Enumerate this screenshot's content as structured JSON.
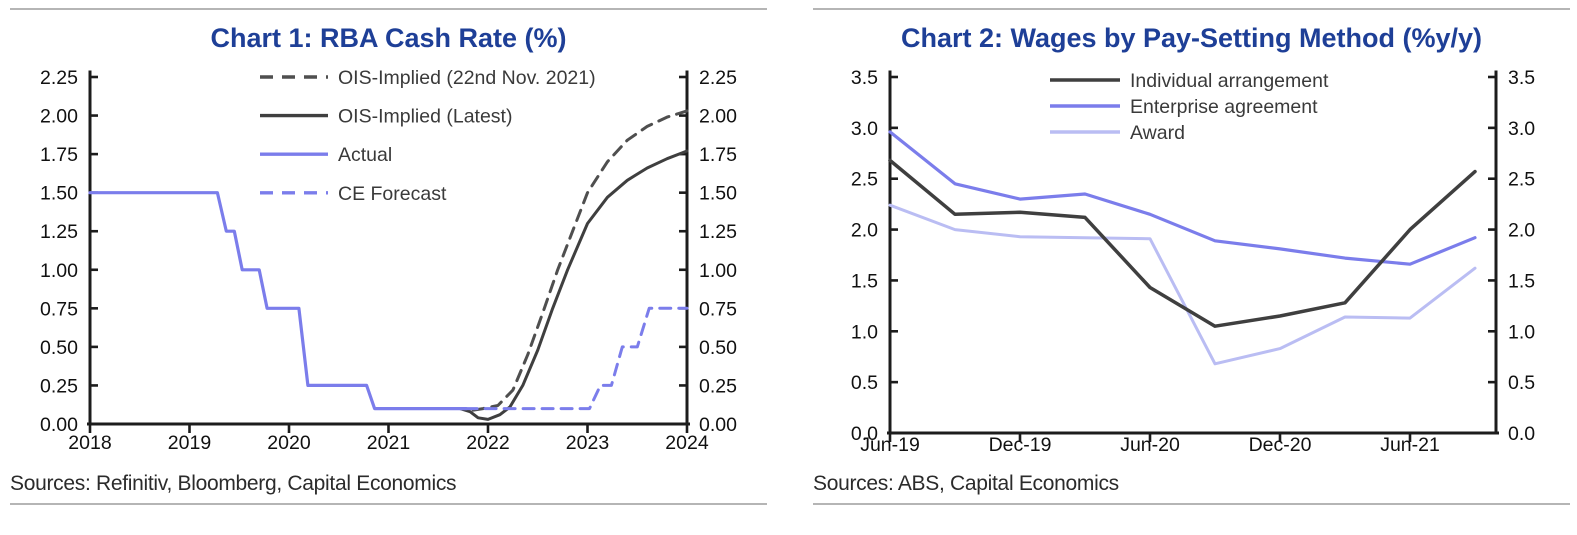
{
  "colors": {
    "title_blue": "#1e3f97",
    "rule_gray": "#b5b5b5",
    "axis_black": "#1c1c1c",
    "tick_label": "#111111",
    "legend_text": "#3a3a3a",
    "dark_line": "#3f3f3f",
    "dark_dashed": "#4f4f4f",
    "periwinkle": "#7b7deb",
    "light_periwinkle": "#babdf3",
    "source_text": "#2b2b2b"
  },
  "panels": [
    {
      "title": "Chart 1: RBA Cash Rate (%)",
      "sources": "Sources: Refinitiv, Bloomberg, Capital Economics"
    },
    {
      "title": "Chart 2: Wages by Pay-Setting Method (%y/y)",
      "sources": "Sources: ABS, Capital Economics"
    }
  ],
  "chart_data": [
    {
      "type": "line",
      "title": "Chart 1: RBA Cash Rate (%)",
      "xlabel": "",
      "ylabel": "",
      "xlim": [
        2018,
        2024
      ],
      "ylim": [
        0,
        2.25
      ],
      "grid": false,
      "dual_y_axis": true,
      "legend_position": "inside-top-center",
      "x_tick_values": [
        2018,
        2019,
        2020,
        2021,
        2022,
        2023,
        2024
      ],
      "x_tick_labels": [
        "2018",
        "2019",
        "2020",
        "2021",
        "2022",
        "2023",
        "2024"
      ],
      "y_tick_values": [
        0,
        0.25,
        0.5,
        0.75,
        1.0,
        1.25,
        1.5,
        1.75,
        2.0,
        2.25
      ],
      "y_tick_labels": [
        "0.00",
        "0.25",
        "0.50",
        "0.75",
        "1.00",
        "1.25",
        "1.50",
        "1.75",
        "2.00",
        "2.25"
      ],
      "series": [
        {
          "name": "OIS-Implied (22nd Nov. 2021)",
          "style": "dashed",
          "color_key": "dark_dashed",
          "points": [
            [
              2021.85,
              0.09
            ],
            [
              2021.95,
              0.1
            ],
            [
              2022.1,
              0.12
            ],
            [
              2022.25,
              0.22
            ],
            [
              2022.4,
              0.45
            ],
            [
              2022.55,
              0.72
            ],
            [
              2022.7,
              1.0
            ],
            [
              2022.85,
              1.25
            ],
            [
              2023.0,
              1.5
            ],
            [
              2023.2,
              1.7
            ],
            [
              2023.4,
              1.84
            ],
            [
              2023.6,
              1.93
            ],
            [
              2023.8,
              1.99
            ],
            [
              2024.0,
              2.03
            ]
          ]
        },
        {
          "name": "OIS-Implied (Latest)",
          "style": "solid",
          "color_key": "dark_line",
          "points": [
            [
              2021.72,
              0.1
            ],
            [
              2021.82,
              0.08
            ],
            [
              2021.9,
              0.04
            ],
            [
              2022.0,
              0.03
            ],
            [
              2022.12,
              0.06
            ],
            [
              2022.22,
              0.11
            ],
            [
              2022.35,
              0.25
            ],
            [
              2022.5,
              0.48
            ],
            [
              2022.65,
              0.75
            ],
            [
              2022.8,
              1.0
            ],
            [
              2023.0,
              1.3
            ],
            [
              2023.2,
              1.47
            ],
            [
              2023.4,
              1.58
            ],
            [
              2023.6,
              1.66
            ],
            [
              2023.8,
              1.72
            ],
            [
              2024.0,
              1.77
            ]
          ]
        },
        {
          "name": "Actual",
          "style": "solid",
          "color_key": "periwinkle",
          "points": [
            [
              2018.0,
              1.5
            ],
            [
              2019.28,
              1.5
            ],
            [
              2019.37,
              1.25
            ],
            [
              2019.45,
              1.25
            ],
            [
              2019.53,
              1.0
            ],
            [
              2019.7,
              1.0
            ],
            [
              2019.78,
              0.75
            ],
            [
              2020.1,
              0.75
            ],
            [
              2020.19,
              0.25
            ],
            [
              2020.78,
              0.25
            ],
            [
              2020.86,
              0.1
            ],
            [
              2021.78,
              0.1
            ]
          ]
        },
        {
          "name": "CE Forecast",
          "style": "dashed",
          "color_key": "periwinkle",
          "points": [
            [
              2021.78,
              0.1
            ],
            [
              2023.02,
              0.1
            ],
            [
              2023.13,
              0.25
            ],
            [
              2023.24,
              0.25
            ],
            [
              2023.35,
              0.5
            ],
            [
              2023.5,
              0.5
            ],
            [
              2023.62,
              0.75
            ],
            [
              2024.0,
              0.75
            ]
          ]
        }
      ]
    },
    {
      "type": "line",
      "title": "Chart 2: Wages by Pay-Setting Method (%y/y)",
      "xlabel": "",
      "ylabel": "",
      "ylim": [
        0,
        3.5
      ],
      "grid": false,
      "dual_y_axis": true,
      "legend_position": "inside-top-center",
      "categories": [
        "Jun-19",
        "Sep-19",
        "Dec-19",
        "Mar-20",
        "Jun-20",
        "Sep-20",
        "Dec-20",
        "Mar-21",
        "Jun-21",
        "Sep-21"
      ],
      "x_tick_indices": [
        0,
        2,
        4,
        6,
        8
      ],
      "x_tick_labels": [
        "Jun-19",
        "Dec-19",
        "Jun-20",
        "Dec-20",
        "Jun-21"
      ],
      "y_tick_values": [
        0,
        0.5,
        1.0,
        1.5,
        2.0,
        2.5,
        3.0,
        3.5
      ],
      "y_tick_labels": [
        "0.0",
        "0.5",
        "1.0",
        "1.5",
        "2.0",
        "2.5",
        "3.0",
        "3.5"
      ],
      "series": [
        {
          "name": "Individual arrangement",
          "style": "solid",
          "color_key": "dark_line",
          "values": [
            2.68,
            2.15,
            2.17,
            2.12,
            1.43,
            1.05,
            1.15,
            1.28,
            2.0,
            2.57
          ]
        },
        {
          "name": "Enterprise agreement",
          "style": "solid",
          "color_key": "periwinkle",
          "values": [
            2.96,
            2.45,
            2.3,
            2.35,
            2.15,
            1.89,
            1.81,
            1.72,
            1.66,
            1.92
          ]
        },
        {
          "name": "Award",
          "style": "solid",
          "color_key": "light_periwinkle",
          "values": [
            2.24,
            2.0,
            1.93,
            1.92,
            1.91,
            0.68,
            0.83,
            1.14,
            1.13,
            1.62
          ]
        }
      ]
    }
  ]
}
